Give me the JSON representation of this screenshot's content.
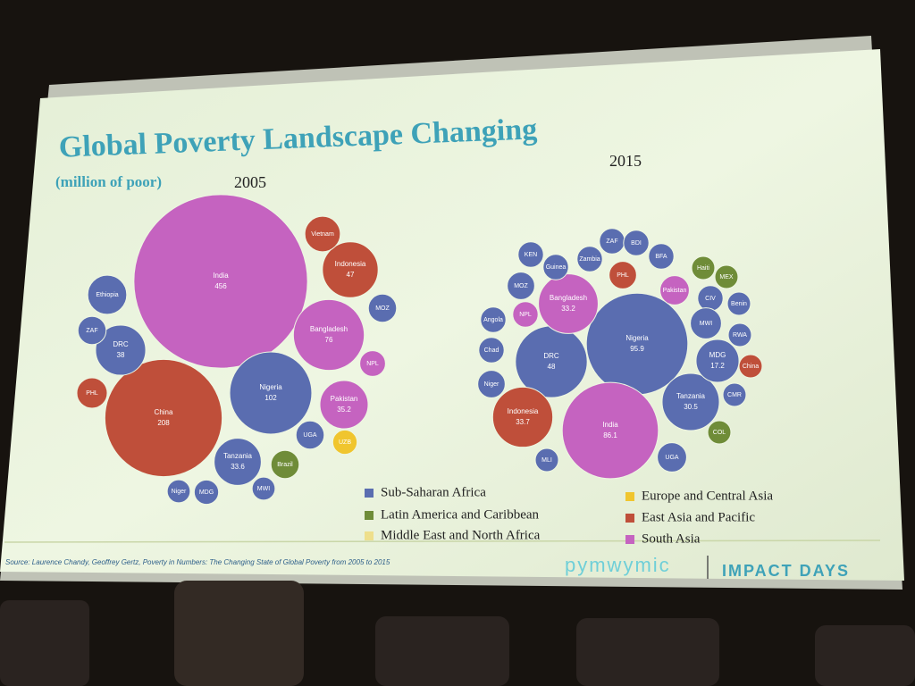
{
  "slide": {
    "title": "Global Poverty Landscape Changing",
    "subtitle": "(million of poor)",
    "source": "Source: Laurence Chandy, Geoffrey Gertz, Poverty in Numbers: The Changing State of Global Poverty from 2005 to 2015",
    "brand": "pymwymic",
    "event": "IMPACT DAYS"
  },
  "legend": [
    {
      "name": "Sub-Saharan Africa",
      "color": "#5a6db0"
    },
    {
      "name": "Latin America and Caribbean",
      "color": "#6f8c38"
    },
    {
      "name": "Middle East and North Africa",
      "color": "#eedf8c"
    },
    {
      "name": "Europe and Central Asia",
      "color": "#f0c52e"
    },
    {
      "name": "East Asia and Pacific",
      "color": "#bf4f3a"
    },
    {
      "name": "South Asia",
      "color": "#c563c0"
    }
  ],
  "chart_data": [
    {
      "type": "bubble",
      "title": "2005",
      "bubbles": [
        {
          "label": "India",
          "value": 456,
          "region": "South Asia"
        },
        {
          "label": "China",
          "value": 208,
          "region": "East Asia and Pacific"
        },
        {
          "label": "Nigeria",
          "value": 102,
          "region": "Sub-Saharan Africa"
        },
        {
          "label": "Bangladesh",
          "value": 76,
          "region": "South Asia"
        },
        {
          "label": "Indonesia",
          "value": 47,
          "region": "East Asia and Pacific"
        },
        {
          "label": "DRC",
          "value": 38,
          "region": "Sub-Saharan Africa"
        },
        {
          "label": "Pakistan",
          "value": 35.2,
          "region": "South Asia"
        },
        {
          "label": "Tanzania",
          "value": 33.6,
          "region": "Sub-Saharan Africa"
        }
      ],
      "small_bubbles": [
        {
          "label": "Vietnam",
          "value": 19,
          "region": "East Asia and Pacific"
        },
        {
          "label": "Ethiopia",
          "value": 23,
          "region": "Sub-Saharan Africa"
        },
        {
          "label": "ZAF",
          "value": 12,
          "region": "Sub-Saharan Africa"
        },
        {
          "label": "PHL",
          "value": 14,
          "region": "East Asia and Pacific"
        },
        {
          "label": "MOZ",
          "value": 12,
          "region": "Sub-Saharan Africa"
        },
        {
          "label": "NPL",
          "value": 10,
          "region": "South Asia"
        },
        {
          "label": "UGA",
          "value": 12,
          "region": "Sub-Saharan Africa"
        },
        {
          "label": "UZB",
          "value": 9,
          "region": "Europe and Central Asia"
        },
        {
          "label": "Brazil",
          "value": 12,
          "region": "Latin America and Caribbean"
        },
        {
          "label": "Niger",
          "value": 8,
          "region": "Sub-Saharan Africa"
        },
        {
          "label": "MDG",
          "value": 9,
          "region": "Sub-Saharan Africa"
        },
        {
          "label": "MWI",
          "value": 8,
          "region": "Sub-Saharan Africa"
        }
      ]
    },
    {
      "type": "bubble",
      "title": "2015",
      "bubbles": [
        {
          "label": "Nigeria",
          "value": 95.9,
          "region": "Sub-Saharan Africa"
        },
        {
          "label": "India",
          "value": 86.1,
          "region": "South Asia"
        },
        {
          "label": "DRC",
          "value": 48,
          "region": "Sub-Saharan Africa"
        },
        {
          "label": "Indonesia",
          "value": 33.7,
          "region": "East Asia and Pacific"
        },
        {
          "label": "Bangladesh",
          "value": 33.2,
          "region": "South Asia"
        },
        {
          "label": "Tanzania",
          "value": 30.5,
          "region": "Sub-Saharan Africa"
        },
        {
          "label": "MDG",
          "value": 17.2,
          "region": "Sub-Saharan Africa"
        }
      ],
      "small_bubbles": [
        {
          "label": "KEN",
          "value": 6,
          "region": "Sub-Saharan Africa"
        },
        {
          "label": "ZAF",
          "value": 6,
          "region": "Sub-Saharan Africa"
        },
        {
          "label": "BDI",
          "value": 6,
          "region": "Sub-Saharan Africa"
        },
        {
          "label": "Guinea",
          "value": 6,
          "region": "Sub-Saharan Africa"
        },
        {
          "label": "Zambia",
          "value": 6,
          "region": "Sub-Saharan Africa"
        },
        {
          "label": "BFA",
          "value": 6,
          "region": "Sub-Saharan Africa"
        },
        {
          "label": "Haiti",
          "value": 5,
          "region": "Latin America and Caribbean"
        },
        {
          "label": "MEX",
          "value": 5,
          "region": "Latin America and Caribbean"
        },
        {
          "label": "MOZ",
          "value": 7,
          "region": "Sub-Saharan Africa"
        },
        {
          "label": "PHL",
          "value": 7,
          "region": "East Asia and Pacific"
        },
        {
          "label": "Pakistan",
          "value": 8,
          "region": "South Asia"
        },
        {
          "label": "CIV",
          "value": 6,
          "region": "Sub-Saharan Africa"
        },
        {
          "label": "NPL",
          "value": 6,
          "region": "South Asia"
        },
        {
          "label": "Benin",
          "value": 5,
          "region": "Sub-Saharan Africa"
        },
        {
          "label": "Angola",
          "value": 6,
          "region": "Sub-Saharan Africa"
        },
        {
          "label": "MWI",
          "value": 9,
          "region": "Sub-Saharan Africa"
        },
        {
          "label": "RWA",
          "value": 5,
          "region": "Sub-Saharan Africa"
        },
        {
          "label": "Chad",
          "value": 6,
          "region": "Sub-Saharan Africa"
        },
        {
          "label": "China",
          "value": 5,
          "region": "East Asia and Pacific"
        },
        {
          "label": "Niger",
          "value": 7,
          "region": "Sub-Saharan Africa"
        },
        {
          "label": "CMR",
          "value": 5,
          "region": "Sub-Saharan Africa"
        },
        {
          "label": "UGA",
          "value": 8,
          "region": "Sub-Saharan Africa"
        },
        {
          "label": "COL",
          "value": 5,
          "region": "Latin America and Caribbean"
        },
        {
          "label": "MLI",
          "value": 5,
          "region": "Sub-Saharan Africa"
        }
      ]
    }
  ]
}
